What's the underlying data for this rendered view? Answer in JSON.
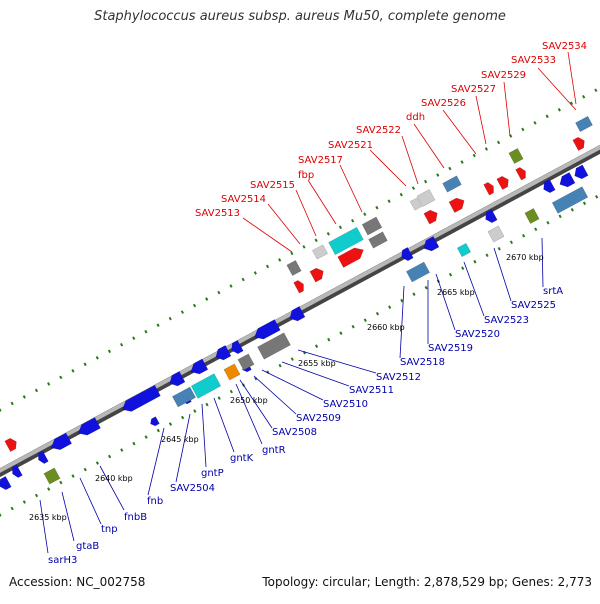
{
  "title": "Staphylococcus aureus subsp. aureus Mu50, complete genome",
  "footer": {
    "accession": "Accession: NC_002758",
    "summary": "Topology: circular; Length: 2,878,529 bp; Genes: 2,773"
  },
  "scale_labels": [
    "2635 kbp",
    "2640 kbp",
    "2645 kbp",
    "2650 kbp",
    "2655 kbp",
    "2660 kbp",
    "2665 kbp",
    "2670 kbp"
  ],
  "top_strand_labels": [
    "SAV2513",
    "SAV2514",
    "SAV2515",
    "fbp",
    "SAV2517",
    "SAV2521",
    "SAV2522",
    "ddh",
    "SAV2526",
    "SAV2527",
    "SAV2529",
    "SAV2533",
    "SAV2534"
  ],
  "bottom_strand_labels": [
    "sarH3",
    "gtaB",
    "tnp",
    "fnbB",
    "fnb",
    "SAV2504",
    "gntP",
    "gntK",
    "gntR",
    "SAV2508",
    "SAV2509",
    "SAV2510",
    "SAV2511",
    "SAV2512",
    "SAV2518",
    "SAV2519",
    "SAV2520",
    "SAV2523",
    "SAV2525",
    "srtA"
  ],
  "colors": {
    "top_label": "#dd0000",
    "bottom_label": "#0000aa",
    "forward_cds": "#ee1111",
    "reverse_cds": "#1111dd",
    "backbone": "#888888",
    "tick": "#2a7a1a",
    "cyan": "#11cccc",
    "orange": "#ee8800",
    "olive": "#6b8e23",
    "steel": "#4682b4",
    "gray": "#777777",
    "light_gray": "#cccccc"
  }
}
